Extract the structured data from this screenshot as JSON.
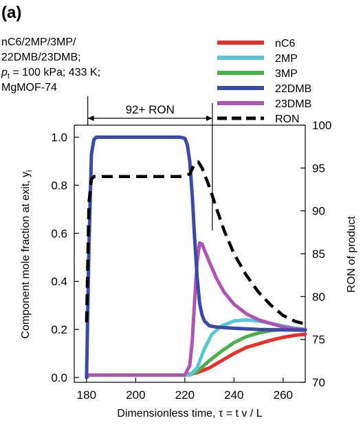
{
  "panel_label": "(a)",
  "conditions": {
    "line1": "nC6/2MP/3MP/",
    "line2": "22DMB/23DMB;",
    "line3_p": "p",
    "line3_sub": "t",
    "line3_rest": " = 100 kPa; 433 K;",
    "line4": "MgMOF-74"
  },
  "annotation": {
    "label": "92+ RON",
    "x_start": 180.5,
    "x_end": 231.2
  },
  "chart_data": {
    "type": "line",
    "xlabel": "Dimensionless time, τ = t v / L",
    "ylabel_left": "Component mole fraction at exit, y",
    "ylabel_left_sub": "i",
    "ylabel_right": "RON of product",
    "xlim": [
      175,
      269
    ],
    "ylim": [
      -0.02,
      1.05
    ],
    "y2lim": [
      70,
      100
    ],
    "xticks": [
      "180",
      "200",
      "220",
      "240",
      "260"
    ],
    "yticks": [
      "0.0",
      "0.2",
      "0.4",
      "0.6",
      "0.8",
      "1.0"
    ],
    "y2ticks": [
      "70",
      "75",
      "80",
      "85",
      "90",
      "95",
      "100"
    ],
    "legend_position": "top-right",
    "series": [
      {
        "name": "nC6",
        "color": "#e8302a",
        "dash": false,
        "axis": "left",
        "points": [
          [
            180,
            0
          ],
          [
            181,
            0.01
          ],
          [
            190,
            0.01
          ],
          [
            210,
            0.01
          ],
          [
            220,
            0.01
          ],
          [
            225,
            0.02
          ],
          [
            230,
            0.04
          ],
          [
            235,
            0.07
          ],
          [
            240,
            0.1
          ],
          [
            245,
            0.125
          ],
          [
            250,
            0.14
          ],
          [
            255,
            0.155
          ],
          [
            260,
            0.167
          ],
          [
            265,
            0.176
          ],
          [
            269,
            0.18
          ]
        ]
      },
      {
        "name": "2MP",
        "color": "#55c8d8",
        "dash": false,
        "axis": "left",
        "points": [
          [
            180,
            0
          ],
          [
            181,
            0.01
          ],
          [
            190,
            0.01
          ],
          [
            210,
            0.01
          ],
          [
            222,
            0.01
          ],
          [
            225,
            0.04
          ],
          [
            228,
            0.12
          ],
          [
            231,
            0.18
          ],
          [
            235,
            0.215
          ],
          [
            240,
            0.235
          ],
          [
            245,
            0.24
          ],
          [
            250,
            0.235
          ],
          [
            255,
            0.225
          ],
          [
            260,
            0.215
          ],
          [
            265,
            0.205
          ],
          [
            269,
            0.2
          ]
        ]
      },
      {
        "name": "3MP",
        "color": "#4bb04b",
        "dash": false,
        "axis": "left",
        "points": [
          [
            180,
            0
          ],
          [
            181,
            0.01
          ],
          [
            190,
            0.01
          ],
          [
            210,
            0.01
          ],
          [
            222,
            0.01
          ],
          [
            225,
            0.025
          ],
          [
            230,
            0.07
          ],
          [
            235,
            0.11
          ],
          [
            240,
            0.145
          ],
          [
            245,
            0.17
          ],
          [
            250,
            0.185
          ],
          [
            255,
            0.195
          ],
          [
            260,
            0.2
          ],
          [
            265,
            0.202
          ],
          [
            269,
            0.2
          ]
        ]
      },
      {
        "name": "22DMB",
        "color": "#3a4aa8",
        "dash": false,
        "axis": "left",
        "points": [
          [
            180,
            0
          ],
          [
            181,
            0.55
          ],
          [
            182,
            0.93
          ],
          [
            183,
            0.99
          ],
          [
            184,
            1.0
          ],
          [
            190,
            1.0
          ],
          [
            200,
            1.0
          ],
          [
            210,
            1.0
          ],
          [
            218,
            1.0
          ],
          [
            220,
            0.995
          ],
          [
            221,
            0.97
          ],
          [
            222,
            0.9
          ],
          [
            223,
            0.76
          ],
          [
            224,
            0.58
          ],
          [
            225,
            0.42
          ],
          [
            226,
            0.31
          ],
          [
            227,
            0.26
          ],
          [
            228,
            0.235
          ],
          [
            230,
            0.215
          ],
          [
            233,
            0.21
          ],
          [
            240,
            0.205
          ],
          [
            250,
            0.2
          ],
          [
            260,
            0.198
          ],
          [
            269,
            0.197
          ]
        ]
      },
      {
        "name": "23DMB",
        "color": "#b054b4",
        "dash": false,
        "axis": "left",
        "points": [
          [
            180,
            0
          ],
          [
            181,
            0.01
          ],
          [
            190,
            0.01
          ],
          [
            210,
            0.01
          ],
          [
            220,
            0.01
          ],
          [
            222,
            0.05
          ],
          [
            223,
            0.15
          ],
          [
            224,
            0.32
          ],
          [
            225,
            0.48
          ],
          [
            226,
            0.56
          ],
          [
            227,
            0.555
          ],
          [
            230,
            0.48
          ],
          [
            233,
            0.41
          ],
          [
            236,
            0.355
          ],
          [
            240,
            0.305
          ],
          [
            245,
            0.265
          ],
          [
            250,
            0.24
          ],
          [
            255,
            0.225
          ],
          [
            260,
            0.21
          ],
          [
            265,
            0.202
          ],
          [
            269,
            0.2
          ]
        ]
      },
      {
        "name": "RON",
        "color": "#000000",
        "dash": true,
        "axis": "right",
        "points": [
          [
            180,
            77
          ],
          [
            181,
            91
          ],
          [
            182,
            93.7
          ],
          [
            183,
            94
          ],
          [
            190,
            94
          ],
          [
            200,
            94
          ],
          [
            210,
            94
          ],
          [
            218,
            94
          ],
          [
            222,
            94.3
          ],
          [
            224,
            95.5
          ],
          [
            225.5,
            95.7
          ],
          [
            227,
            95
          ],
          [
            230,
            92.8
          ],
          [
            233,
            90.2
          ],
          [
            236,
            87.7
          ],
          [
            240,
            85
          ],
          [
            245,
            82.5
          ],
          [
            250,
            80.5
          ],
          [
            255,
            79
          ],
          [
            260,
            77.8
          ],
          [
            265,
            77.1
          ],
          [
            269,
            76.8
          ]
        ]
      }
    ]
  }
}
